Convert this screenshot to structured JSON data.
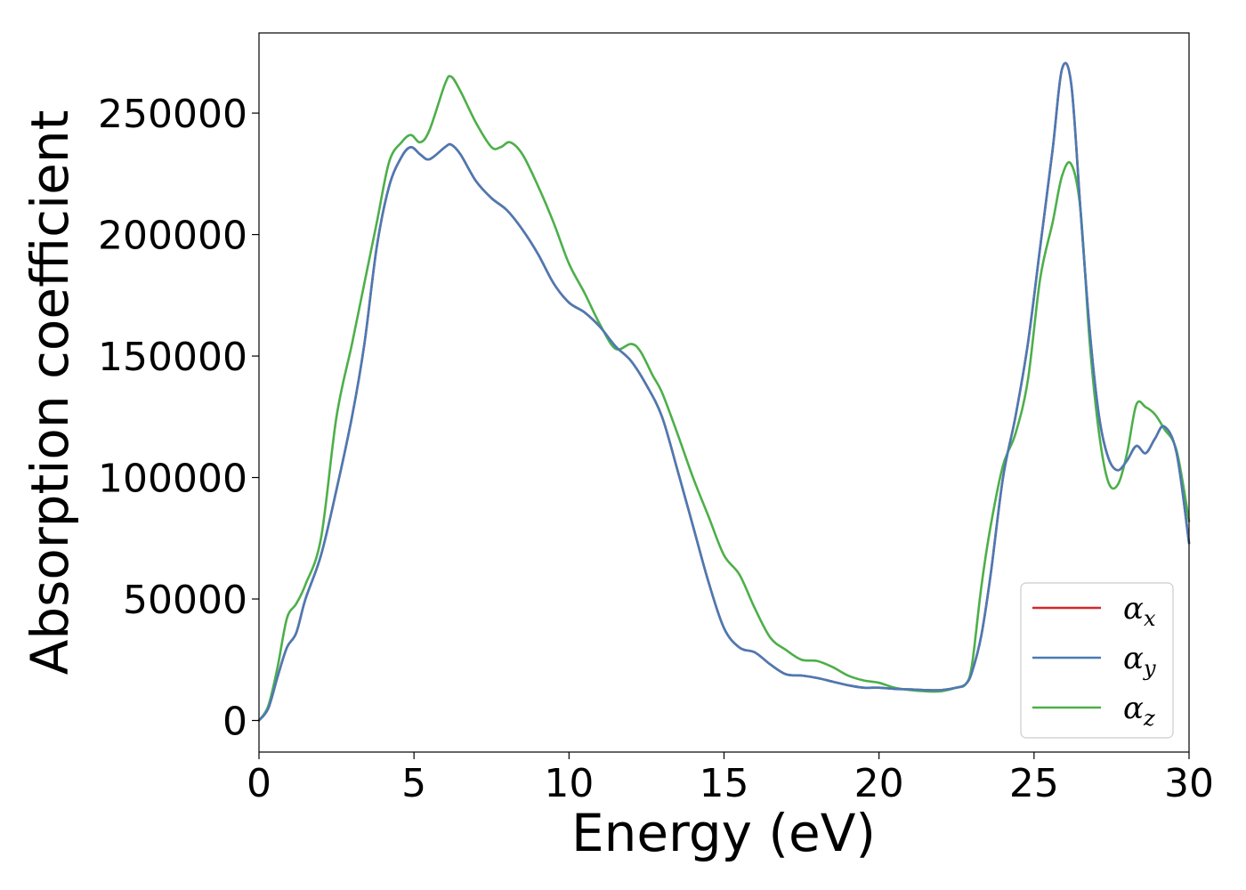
{
  "chart_data": {
    "type": "line",
    "xlabel": "Energy (eV)",
    "ylabel": "Absorption coefficient",
    "xlim": [
      0,
      30
    ],
    "ylim": [
      -13000,
      283000
    ],
    "xticks": [
      0,
      5,
      10,
      15,
      20,
      25,
      30
    ],
    "xtick_labels": [
      "0",
      "5",
      "10",
      "15",
      "20",
      "25",
      "30"
    ],
    "yticks": [
      0,
      50000,
      100000,
      150000,
      200000,
      250000
    ],
    "ytick_labels": [
      "0",
      "50000",
      "100000",
      "150000",
      "200000",
      "250000"
    ],
    "grid": false,
    "legend_position": "bottom-right",
    "series": [
      {
        "name": "α",
        "subscript": "x",
        "color": "#d62728",
        "x": [
          0,
          0.3,
          0.6,
          0.9,
          1.2,
          1.5,
          2.0,
          2.5,
          3.0,
          3.4,
          3.8,
          4.2,
          4.6,
          4.9,
          5.2,
          5.5,
          6.0,
          6.2,
          6.5,
          7.0,
          7.5,
          8.0,
          8.5,
          9.0,
          9.5,
          10.0,
          10.5,
          11.0,
          11.5,
          12.0,
          12.5,
          13.0,
          13.5,
          14.0,
          14.5,
          15.0,
          15.5,
          16.0,
          16.5,
          17.0,
          17.5,
          18.0,
          18.5,
          19.0,
          19.5,
          20.0,
          20.5,
          21.0,
          21.5,
          22.0,
          22.5,
          22.8,
          23.0,
          23.3,
          23.6,
          24.0,
          24.4,
          24.8,
          25.2,
          25.6,
          25.9,
          26.2,
          26.5,
          26.8,
          27.1,
          27.4,
          27.7,
          28.0,
          28.3,
          28.6,
          28.9,
          29.2,
          29.6,
          30.0
        ],
        "y": [
          0,
          5000,
          18000,
          30000,
          36000,
          50000,
          68000,
          95000,
          125000,
          155000,
          195000,
          220000,
          232000,
          236000,
          233000,
          231000,
          236000,
          237000,
          233000,
          222000,
          215000,
          210000,
          202000,
          192000,
          180000,
          172000,
          168000,
          162000,
          154000,
          148000,
          138000,
          125000,
          103000,
          80000,
          57000,
          38000,
          30000,
          28000,
          23000,
          19000,
          18500,
          17500,
          16000,
          14500,
          13500,
          13500,
          13000,
          12800,
          12500,
          12500,
          13500,
          15000,
          20000,
          35000,
          60000,
          100000,
          125000,
          155000,
          195000,
          235000,
          268000,
          262000,
          210000,
          160000,
          125000,
          108000,
          103000,
          107000,
          113000,
          110000,
          116000,
          121000,
          110000,
          73000
        ]
      },
      {
        "name": "α",
        "subscript": "y",
        "color": "#4a7ab5",
        "x": [
          0,
          0.3,
          0.6,
          0.9,
          1.2,
          1.5,
          2.0,
          2.5,
          3.0,
          3.4,
          3.8,
          4.2,
          4.6,
          4.9,
          5.2,
          5.5,
          6.0,
          6.2,
          6.5,
          7.0,
          7.5,
          8.0,
          8.5,
          9.0,
          9.5,
          10.0,
          10.5,
          11.0,
          11.5,
          12.0,
          12.5,
          13.0,
          13.5,
          14.0,
          14.5,
          15.0,
          15.5,
          16.0,
          16.5,
          17.0,
          17.5,
          18.0,
          18.5,
          19.0,
          19.5,
          20.0,
          20.5,
          21.0,
          21.5,
          22.0,
          22.5,
          22.8,
          23.0,
          23.3,
          23.6,
          24.0,
          24.4,
          24.8,
          25.2,
          25.6,
          25.9,
          26.2,
          26.5,
          26.8,
          27.1,
          27.4,
          27.7,
          28.0,
          28.3,
          28.6,
          28.9,
          29.2,
          29.6,
          30.0
        ],
        "y": [
          0,
          5000,
          18000,
          30000,
          36000,
          50000,
          68000,
          95000,
          125000,
          155000,
          195000,
          220000,
          232000,
          236000,
          233000,
          231000,
          236000,
          237000,
          233000,
          222000,
          215000,
          210000,
          202000,
          192000,
          180000,
          172000,
          168000,
          162000,
          154000,
          148000,
          138000,
          125000,
          103000,
          80000,
          57000,
          38000,
          30000,
          28000,
          23000,
          19000,
          18500,
          17500,
          16000,
          14500,
          13500,
          13500,
          13000,
          12800,
          12500,
          12500,
          13500,
          15000,
          20000,
          35000,
          60000,
          100000,
          125000,
          155000,
          195000,
          235000,
          268000,
          262000,
          210000,
          160000,
          125000,
          108000,
          103000,
          107000,
          113000,
          110000,
          116000,
          121000,
          110000,
          73000
        ]
      },
      {
        "name": "α",
        "subscript": "z",
        "color": "#4daf4a",
        "x": [
          0,
          0.3,
          0.6,
          0.9,
          1.2,
          1.5,
          2.0,
          2.5,
          3.0,
          3.4,
          3.8,
          4.2,
          4.6,
          4.9,
          5.2,
          5.5,
          6.0,
          6.2,
          6.5,
          7.0,
          7.5,
          7.8,
          8.1,
          8.5,
          9.0,
          9.5,
          10.0,
          10.5,
          11.0,
          11.5,
          12.0,
          12.3,
          12.7,
          13.0,
          13.5,
          14.0,
          14.5,
          15.0,
          15.5,
          16.0,
          16.5,
          17.0,
          17.5,
          18.0,
          18.5,
          19.0,
          19.5,
          20.0,
          20.5,
          21.0,
          21.5,
          22.0,
          22.5,
          22.8,
          23.0,
          23.3,
          23.6,
          24.0,
          24.4,
          24.8,
          25.2,
          25.6,
          25.9,
          26.2,
          26.5,
          26.8,
          27.1,
          27.4,
          27.7,
          28.0,
          28.3,
          28.6,
          28.9,
          29.2,
          29.6,
          30.0
        ],
        "y": [
          0,
          6000,
          22000,
          42000,
          48000,
          56000,
          75000,
          125000,
          155000,
          180000,
          205000,
          230000,
          238000,
          241000,
          238000,
          243000,
          262000,
          265000,
          259000,
          246000,
          236000,
          236000,
          238000,
          233000,
          220000,
          205000,
          188000,
          176000,
          163000,
          153000,
          155000,
          152000,
          142000,
          135000,
          118000,
          100000,
          84000,
          68000,
          60000,
          46000,
          34000,
          29000,
          25000,
          24500,
          22000,
          18500,
          16500,
          15500,
          13500,
          12500,
          12000,
          12000,
          13500,
          15000,
          23000,
          55000,
          80000,
          105000,
          118000,
          140000,
          182000,
          205000,
          224000,
          229000,
          210000,
          155000,
          118000,
          98000,
          97000,
          110000,
          130000,
          129000,
          126000,
          120000,
          111000,
          82000
        ]
      }
    ]
  }
}
